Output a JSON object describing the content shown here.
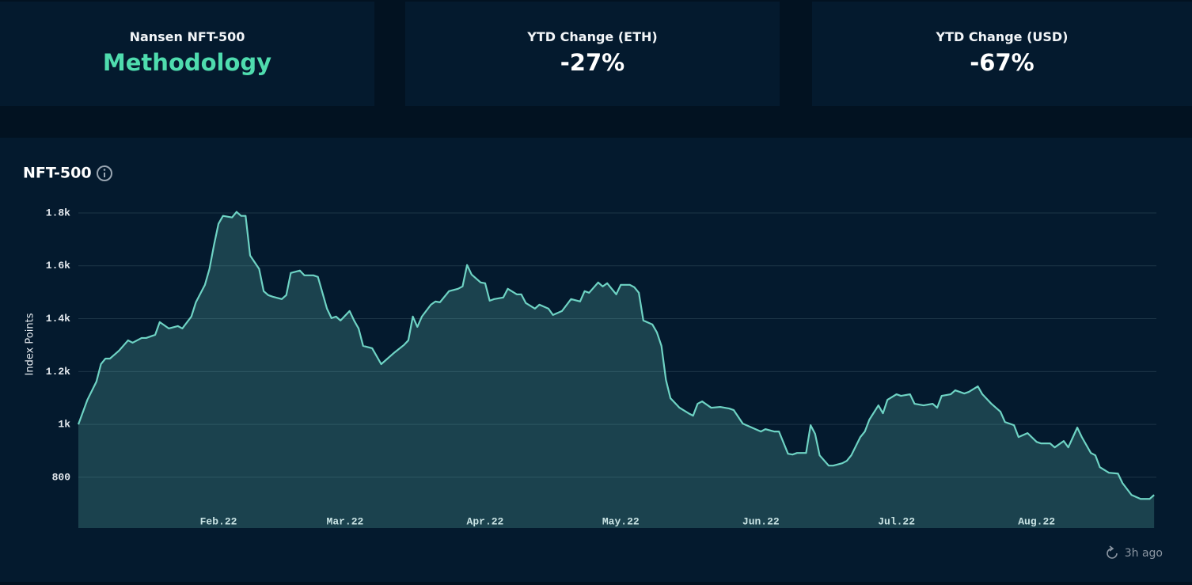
{
  "cards": [
    {
      "title": "Nansen NFT-500",
      "value": "Methodology"
    },
    {
      "title": "YTD Change (ETH)",
      "value": "-27%"
    },
    {
      "title": "YTD Change (USD)",
      "value": "-67%"
    }
  ],
  "updated": "3h ago",
  "chart_data": {
    "type": "line",
    "title": "NFT-500",
    "y_label": "Index Points",
    "area": true,
    "grid": true,
    "xlim": [
      0,
      238.5
    ],
    "ylim": [
      608,
      1800
    ],
    "xticks": [
      {
        "value": 31,
        "label": "Feb.22"
      },
      {
        "value": 59,
        "label": "Mar.22"
      },
      {
        "value": 90,
        "label": "Apr.22"
      },
      {
        "value": 120,
        "label": "May.22"
      },
      {
        "value": 151,
        "label": "Jun.22"
      },
      {
        "value": 181,
        "label": "Jul.22"
      },
      {
        "value": 212,
        "label": "Aug.22"
      }
    ],
    "yticks": [
      800,
      {
        "value": 1000,
        "label": "1k"
      },
      {
        "value": 1200,
        "label": "1.2k"
      },
      {
        "value": 1400,
        "label": "1.4k"
      },
      {
        "value": 1600,
        "label": "1.6k"
      },
      {
        "value": 1800,
        "label": "1.8k"
      }
    ],
    "x": [
      0,
      2,
      4,
      5,
      6,
      7,
      9,
      11,
      12,
      14,
      15,
      17,
      18,
      20,
      22,
      23,
      25,
      26,
      28,
      29,
      30,
      31,
      32,
      34,
      35,
      36,
      37,
      38,
      40,
      41,
      42,
      43,
      45,
      46,
      47,
      49,
      50,
      52,
      53,
      55,
      56,
      57,
      58,
      60,
      61,
      62,
      63,
      65,
      66,
      67,
      69,
      70,
      72,
      73,
      74,
      75,
      76,
      78,
      79,
      80,
      82,
      84,
      85,
      86,
      87,
      89,
      90,
      91,
      92,
      94,
      95,
      97,
      98,
      99,
      101,
      102,
      104,
      105,
      107,
      109,
      111,
      112,
      113,
      115,
      116,
      117,
      119,
      120,
      122,
      123,
      124,
      125,
      127,
      128,
      129,
      130,
      131,
      133,
      135,
      136,
      137,
      138,
      140,
      142,
      144,
      145,
      147,
      149,
      151,
      152,
      154,
      155,
      157,
      158,
      159,
      161,
      162,
      163,
      164,
      166,
      167,
      169,
      170,
      171,
      173,
      174,
      175,
      177,
      178,
      179,
      181,
      182,
      184,
      185,
      187,
      189,
      190,
      191,
      193,
      194,
      196,
      197,
      199,
      200,
      202,
      204,
      205,
      207,
      208,
      210,
      212,
      213,
      215,
      216,
      218,
      219,
      221,
      222,
      224,
      225,
      226,
      228,
      230,
      231,
      233,
      235,
      237,
      238
    ],
    "series": [
      {
        "name": "NFT-500",
        "color": "#6ed3c4",
        "values": [
          1000,
          1093,
          1162,
          1228,
          1249,
          1249,
          1279,
          1318,
          1309,
          1327,
          1327,
          1339,
          1387,
          1363,
          1372,
          1363,
          1408,
          1462,
          1528,
          1588,
          1678,
          1759,
          1789,
          1783,
          1804,
          1789,
          1789,
          1639,
          1588,
          1504,
          1489,
          1483,
          1474,
          1489,
          1573,
          1582,
          1564,
          1564,
          1558,
          1438,
          1402,
          1408,
          1393,
          1429,
          1393,
          1363,
          1297,
          1288,
          1258,
          1228,
          1258,
          1273,
          1300,
          1318,
          1408,
          1369,
          1408,
          1453,
          1465,
          1462,
          1504,
          1513,
          1522,
          1603,
          1567,
          1537,
          1534,
          1468,
          1474,
          1480,
          1513,
          1492,
          1492,
          1459,
          1438,
          1453,
          1438,
          1414,
          1429,
          1474,
          1465,
          1504,
          1498,
          1537,
          1522,
          1534,
          1492,
          1528,
          1528,
          1519,
          1498,
          1393,
          1378,
          1348,
          1297,
          1168,
          1099,
          1063,
          1042,
          1033,
          1078,
          1087,
          1063,
          1066,
          1060,
          1054,
          1003,
          988,
          973,
          982,
          973,
          973,
          889,
          886,
          892,
          892,
          997,
          964,
          883,
          844,
          844,
          853,
          862,
          883,
          952,
          973,
          1018,
          1072,
          1042,
          1093,
          1114,
          1108,
          1114,
          1078,
          1072,
          1078,
          1063,
          1108,
          1114,
          1129,
          1117,
          1123,
          1144,
          1114,
          1078,
          1048,
          1009,
          997,
          952,
          967,
          934,
          928,
          928,
          913,
          937,
          913,
          988,
          952,
          892,
          883,
          838,
          817,
          814,
          778,
          733,
          718,
          718,
          733
        ]
      }
    ]
  }
}
